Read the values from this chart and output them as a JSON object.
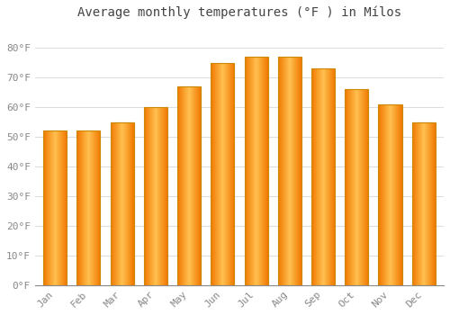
{
  "title": "Average monthly temperatures (°F ) in Mílos",
  "categories": [
    "Jan",
    "Feb",
    "Mar",
    "Apr",
    "May",
    "Jun",
    "Jul",
    "Aug",
    "Sep",
    "Oct",
    "Nov",
    "Dec"
  ],
  "values": [
    52,
    52,
    55,
    60,
    67,
    75,
    77,
    77,
    73,
    66,
    61,
    55
  ],
  "bar_color_center": "#FFB833",
  "bar_color_edge": "#F07800",
  "background_color": "#FFFFFF",
  "plot_bg_color": "#FFFFFF",
  "grid_color": "#DDDDDD",
  "ylim": [
    0,
    88
  ],
  "yticks": [
    0,
    10,
    20,
    30,
    40,
    50,
    60,
    70,
    80
  ],
  "ytick_labels": [
    "0°F",
    "10°F",
    "20°F",
    "30°F",
    "40°F",
    "50°F",
    "60°F",
    "70°F",
    "80°F"
  ],
  "tick_fontsize": 8,
  "title_fontsize": 10,
  "font_family": "monospace",
  "tick_color": "#888888",
  "title_color": "#444444",
  "bar_edge_color": "#CC8800",
  "bar_edge_linewidth": 0.8
}
